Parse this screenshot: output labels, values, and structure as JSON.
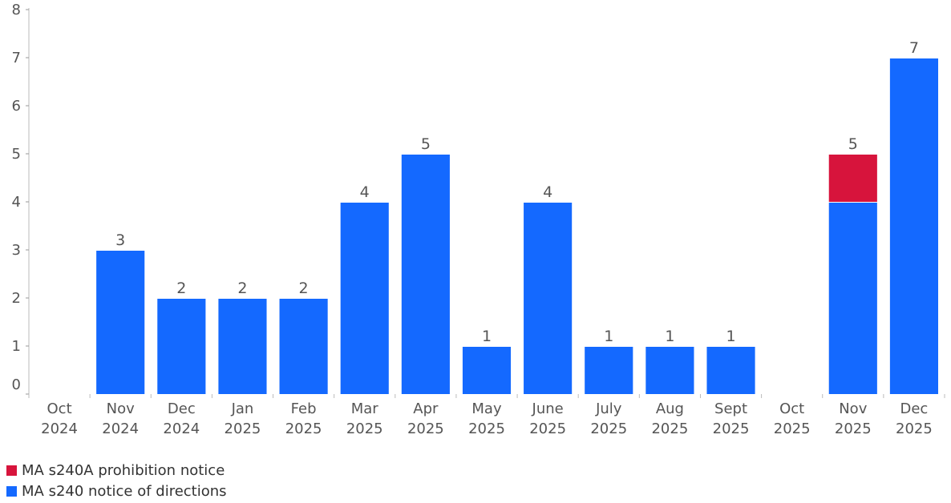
{
  "chart_data": {
    "type": "bar",
    "stacked": true,
    "title": "",
    "xlabel": "",
    "ylabel": "",
    "ylim": [
      0,
      8
    ],
    "yticks": [
      0,
      1,
      2,
      3,
      4,
      5,
      6,
      7,
      8
    ],
    "grid": false,
    "legend_position": "bottom-left",
    "categories": [
      [
        "Oct",
        "2024"
      ],
      [
        "Nov",
        "2024"
      ],
      [
        "Dec",
        "2024"
      ],
      [
        "Jan",
        "2025"
      ],
      [
        "Feb",
        "2025"
      ],
      [
        "Mar",
        "2025"
      ],
      [
        "Apr",
        "2025"
      ],
      [
        "May",
        "2025"
      ],
      [
        "June",
        "2025"
      ],
      [
        "July",
        "2025"
      ],
      [
        "Aug",
        "2025"
      ],
      [
        "Sept",
        "2025"
      ],
      [
        "Oct",
        "2025"
      ],
      [
        "Nov",
        "2025"
      ],
      [
        "Dec",
        "2025"
      ]
    ],
    "series": [
      {
        "name": "MA s240 notice of directions",
        "color": "#1469ff",
        "values": [
          0,
          3,
          2,
          2,
          2,
          4,
          5,
          1,
          4,
          1,
          1,
          1,
          0,
          4,
          7
        ]
      },
      {
        "name": "MA s240A prohibition notice",
        "color": "#d7143c",
        "values": [
          0,
          0,
          0,
          0,
          0,
          0,
          0,
          0,
          0,
          0,
          0,
          0,
          0,
          1,
          0
        ]
      }
    ],
    "totals": [
      "",
      "3",
      "2",
      "2",
      "2",
      "4",
      "5",
      "1",
      "4",
      "1",
      "1",
      "1",
      "",
      "5",
      "7"
    ]
  },
  "legend": [
    {
      "label": "MA s240A prohibition notice",
      "color": "#d7143c"
    },
    {
      "label": "MA s240 notice of directions",
      "color": "#1469ff"
    }
  ]
}
